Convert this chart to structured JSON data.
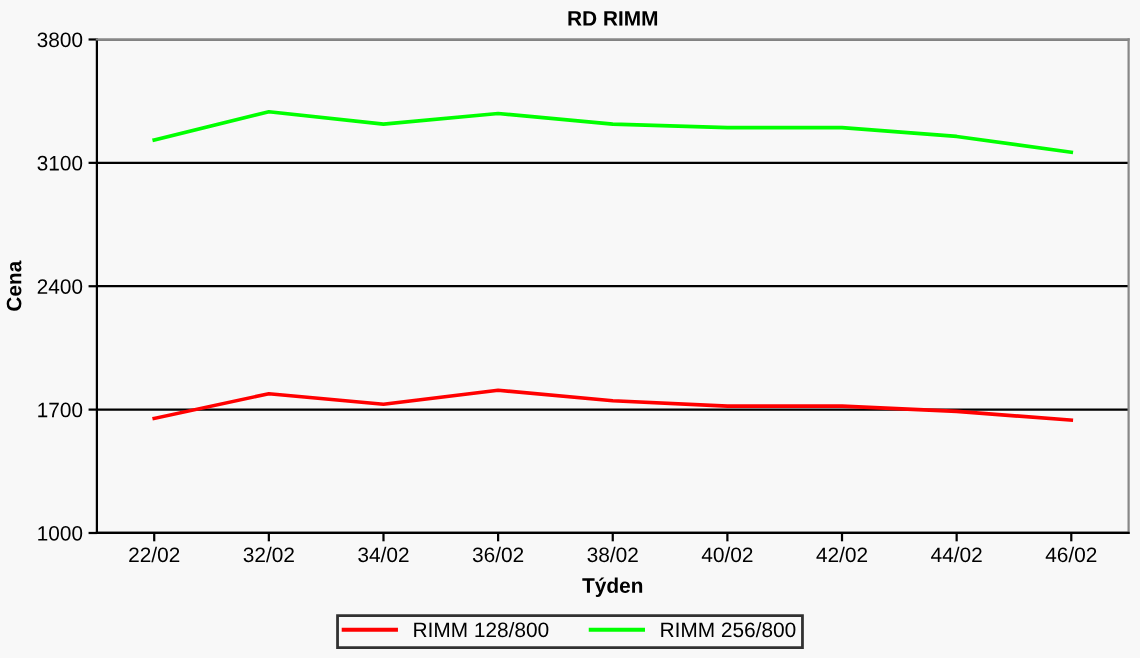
{
  "chart_data": {
    "type": "line",
    "title": "RD RIMM",
    "xlabel": "Týden",
    "ylabel": "Cena",
    "categories": [
      "22/02",
      "32/02",
      "34/02",
      "36/02",
      "38/02",
      "40/02",
      "42/02",
      "44/02",
      "46/02"
    ],
    "series": [
      {
        "name": "RIMM 128/800",
        "color": "#ff0000",
        "values": [
          1650,
          1790,
          1730,
          1810,
          1750,
          1720,
          1720,
          1690,
          1640
        ]
      },
      {
        "name": "RIMM 256/800",
        "color": "#00ff00",
        "values": [
          3230,
          3390,
          3320,
          3380,
          3320,
          3300,
          3300,
          3250,
          3160
        ]
      }
    ],
    "ylim": [
      1000,
      3800
    ],
    "yticks": [
      1000,
      1700,
      2400,
      3100,
      3800
    ],
    "grid": "y",
    "legend": "bottom",
    "marker": "none",
    "line_style": "solid"
  }
}
